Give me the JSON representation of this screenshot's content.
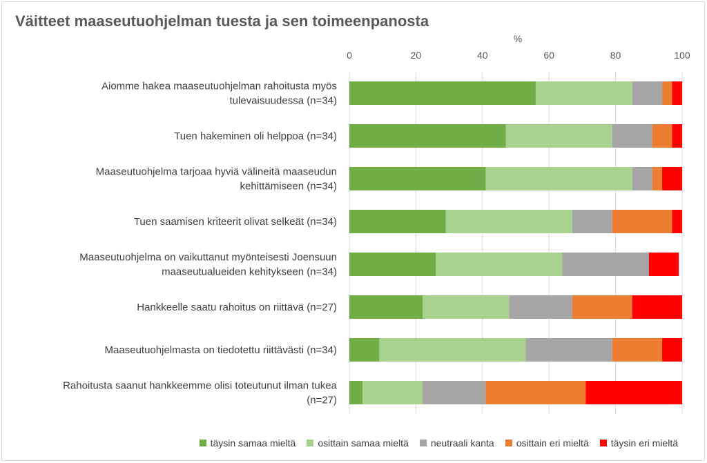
{
  "chart_data": {
    "type": "bar",
    "orientation": "horizontal",
    "stacked": true,
    "title": "Väitteet maaseutuohjelman tuesta ja sen toimeenpanosta",
    "xlabel": "%",
    "xlim": [
      0,
      100
    ],
    "xticks": [
      0,
      20,
      40,
      60,
      80,
      100
    ],
    "grid": true,
    "legend_position": "bottom",
    "categories": [
      [
        "Aiomme hakea maaseutuohjelman rahoitusta myös",
        "tulevaisuudessa (n=34)"
      ],
      [
        "Tuen hakeminen oli helppoa (n=34)"
      ],
      [
        "Maaseutuohjelma tarjoaa hyviä välineitä maaseudun",
        "kehittämiseen (n=34)"
      ],
      [
        "Tuen saamisen kriteerit olivat selkeät (n=34)"
      ],
      [
        "Maaseutuohjelma on vaikuttanut myönteisesti Joensuun",
        "maaseutualueiden kehitykseen (n=34)"
      ],
      [
        "Hankkeelle saatu rahoitus on riittävä (n=27)"
      ],
      [
        "Maaseutuohjelmasta on tiedotettu riittävästi (n=34)"
      ],
      [
        "Rahoitusta saanut hankkeemme olisi toteutunut ilman tukea",
        "(n=27)"
      ]
    ],
    "series": [
      {
        "name": "täysin samaa mieltä",
        "color": "#70ad47",
        "values": [
          56,
          47,
          41,
          29,
          26,
          22,
          9,
          4
        ]
      },
      {
        "name": "osittain samaa mieltä",
        "color": "#a9d18e",
        "values": [
          29,
          32,
          44,
          38,
          38,
          26,
          44,
          18
        ]
      },
      {
        "name": "neutraali kanta",
        "color": "#a5a5a5",
        "values": [
          9,
          12,
          6,
          12,
          26,
          19,
          26,
          19
        ]
      },
      {
        "name": "osittain eri mieltä",
        "color": "#ed7d31",
        "values": [
          3,
          6,
          3,
          18,
          0,
          18,
          15,
          30
        ]
      },
      {
        "name": "täysin eri mieltä",
        "color": "#ff0000",
        "values": [
          3,
          3,
          6,
          3,
          9,
          15,
          6,
          29
        ]
      }
    ]
  }
}
